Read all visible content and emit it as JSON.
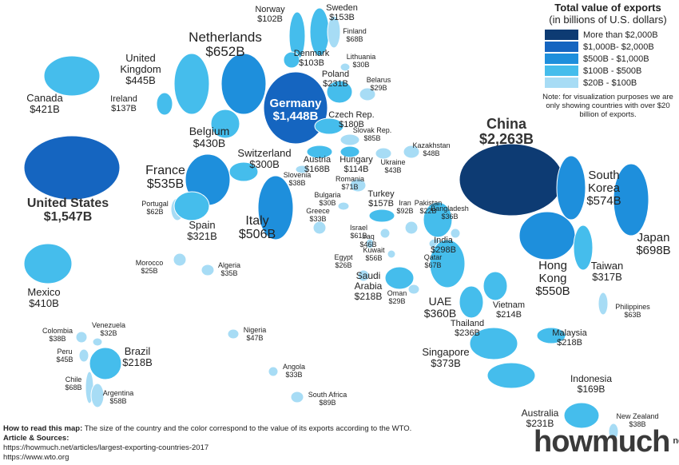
{
  "legend": {
    "title": "Total value of exports",
    "subtitle": "(in billions of U.S. dollars)",
    "items": [
      "More than $2,000B",
      "$1,000B- $2,000B",
      "$500B - $1,000B",
      "$100B - $500B",
      "$20B - $100B"
    ],
    "note": "Note: for visualization purposes we are only showing countries with over $20 billion of exports."
  },
  "countries": [
    {
      "name": "Norway",
      "value": "$102B"
    },
    {
      "name": "Sweden",
      "value": "$153B"
    },
    {
      "name": "Finland",
      "value": "$68B"
    },
    {
      "name": "Netherlands",
      "value": "$652B"
    },
    {
      "name": "Denmark",
      "value": "$103B"
    },
    {
      "name": "Lithuania",
      "value": "$30B"
    },
    {
      "name": "United Kingdom",
      "value": "$445B"
    },
    {
      "name": "Poland",
      "value": "$231B"
    },
    {
      "name": "Belarus",
      "value": "$29B"
    },
    {
      "name": "Canada",
      "value": "$421B"
    },
    {
      "name": "Ireland",
      "value": "$137B"
    },
    {
      "name": "Germany",
      "value": "$1,448B"
    },
    {
      "name": "Czech Rep.",
      "value": "$180B"
    },
    {
      "name": "Slovak Rep.",
      "value": "$85B"
    },
    {
      "name": "Belgium",
      "value": "$430B"
    },
    {
      "name": "Kazakhstan",
      "value": "$48B"
    },
    {
      "name": "China",
      "value": "$2,263B"
    },
    {
      "name": "Switzerland",
      "value": "$300B"
    },
    {
      "name": "Austria",
      "value": "$168B"
    },
    {
      "name": "Hungary",
      "value": "$114B"
    },
    {
      "name": "Ukraine",
      "value": "$43B"
    },
    {
      "name": "United States",
      "value": "$1,547B"
    },
    {
      "name": "France",
      "value": "$535B"
    },
    {
      "name": "Slovenia",
      "value": "$38B"
    },
    {
      "name": "Romania",
      "value": "$71B"
    },
    {
      "name": "South Korea",
      "value": "$574B"
    },
    {
      "name": "Bulgaria",
      "value": "$30B"
    },
    {
      "name": "Turkey",
      "value": "$157B"
    },
    {
      "name": "Portugal",
      "value": "$62B"
    },
    {
      "name": "Iran",
      "value": "$92B"
    },
    {
      "name": "Pakistan",
      "value": "$22B"
    },
    {
      "name": "Bangladesh",
      "value": "$36B"
    },
    {
      "name": "Greece",
      "value": "$33B"
    },
    {
      "name": "Italy",
      "value": "$506B"
    },
    {
      "name": "Spain",
      "value": "$321B"
    },
    {
      "name": "Israel",
      "value": "$61B"
    },
    {
      "name": "Iraq",
      "value": "$46B"
    },
    {
      "name": "India",
      "value": "$298B"
    },
    {
      "name": "Japan",
      "value": "$698B"
    },
    {
      "name": "Morocco",
      "value": "$25B"
    },
    {
      "name": "Algeria",
      "value": "$35B"
    },
    {
      "name": "Kuwait",
      "value": "$56B"
    },
    {
      "name": "Egypt",
      "value": "$26B"
    },
    {
      "name": "Qatar",
      "value": "$67B"
    },
    {
      "name": "Hong Kong",
      "value": "$550B"
    },
    {
      "name": "Taiwan",
      "value": "$317B"
    },
    {
      "name": "Saudi Arabia",
      "value": "$218B"
    },
    {
      "name": "Mexico",
      "value": "$410B"
    },
    {
      "name": "Oman",
      "value": "$29B"
    },
    {
      "name": "UAE",
      "value": "$360B"
    },
    {
      "name": "Vietnam",
      "value": "$214B"
    },
    {
      "name": "Philippines",
      "value": "$63B"
    },
    {
      "name": "Thailand",
      "value": "$236B"
    },
    {
      "name": "Colombia",
      "value": "$38B"
    },
    {
      "name": "Venezuela",
      "value": "$32B"
    },
    {
      "name": "Nigeria",
      "value": "$47B"
    },
    {
      "name": "Malaysia",
      "value": "$218B"
    },
    {
      "name": "Brazil",
      "value": "$218B"
    },
    {
      "name": "Peru",
      "value": "$45B"
    },
    {
      "name": "Singapore",
      "value": "$373B"
    },
    {
      "name": "Angola",
      "value": "$33B"
    },
    {
      "name": "Chile",
      "value": "$68B"
    },
    {
      "name": "Indonesia",
      "value": "$169B"
    },
    {
      "name": "Argentina",
      "value": "$58B"
    },
    {
      "name": "South Africa",
      "value": "$89B"
    },
    {
      "name": "Australia",
      "value": "$231B"
    },
    {
      "name": "New Zealand",
      "value": "$38B"
    }
  ],
  "footer": {
    "how_to_read_label": "How to read this map:",
    "how_to_read_text": "The size of the country and the color correspond to the value of its exports according to the WTO.",
    "sources_label": "Article & Sources:",
    "sources": [
      "https://howmuch.net/articles/largest-exporting-countries-2017",
      "https://www.wto.org"
    ]
  },
  "logo": {
    "text": "howmuch",
    "suffix": "net"
  }
}
